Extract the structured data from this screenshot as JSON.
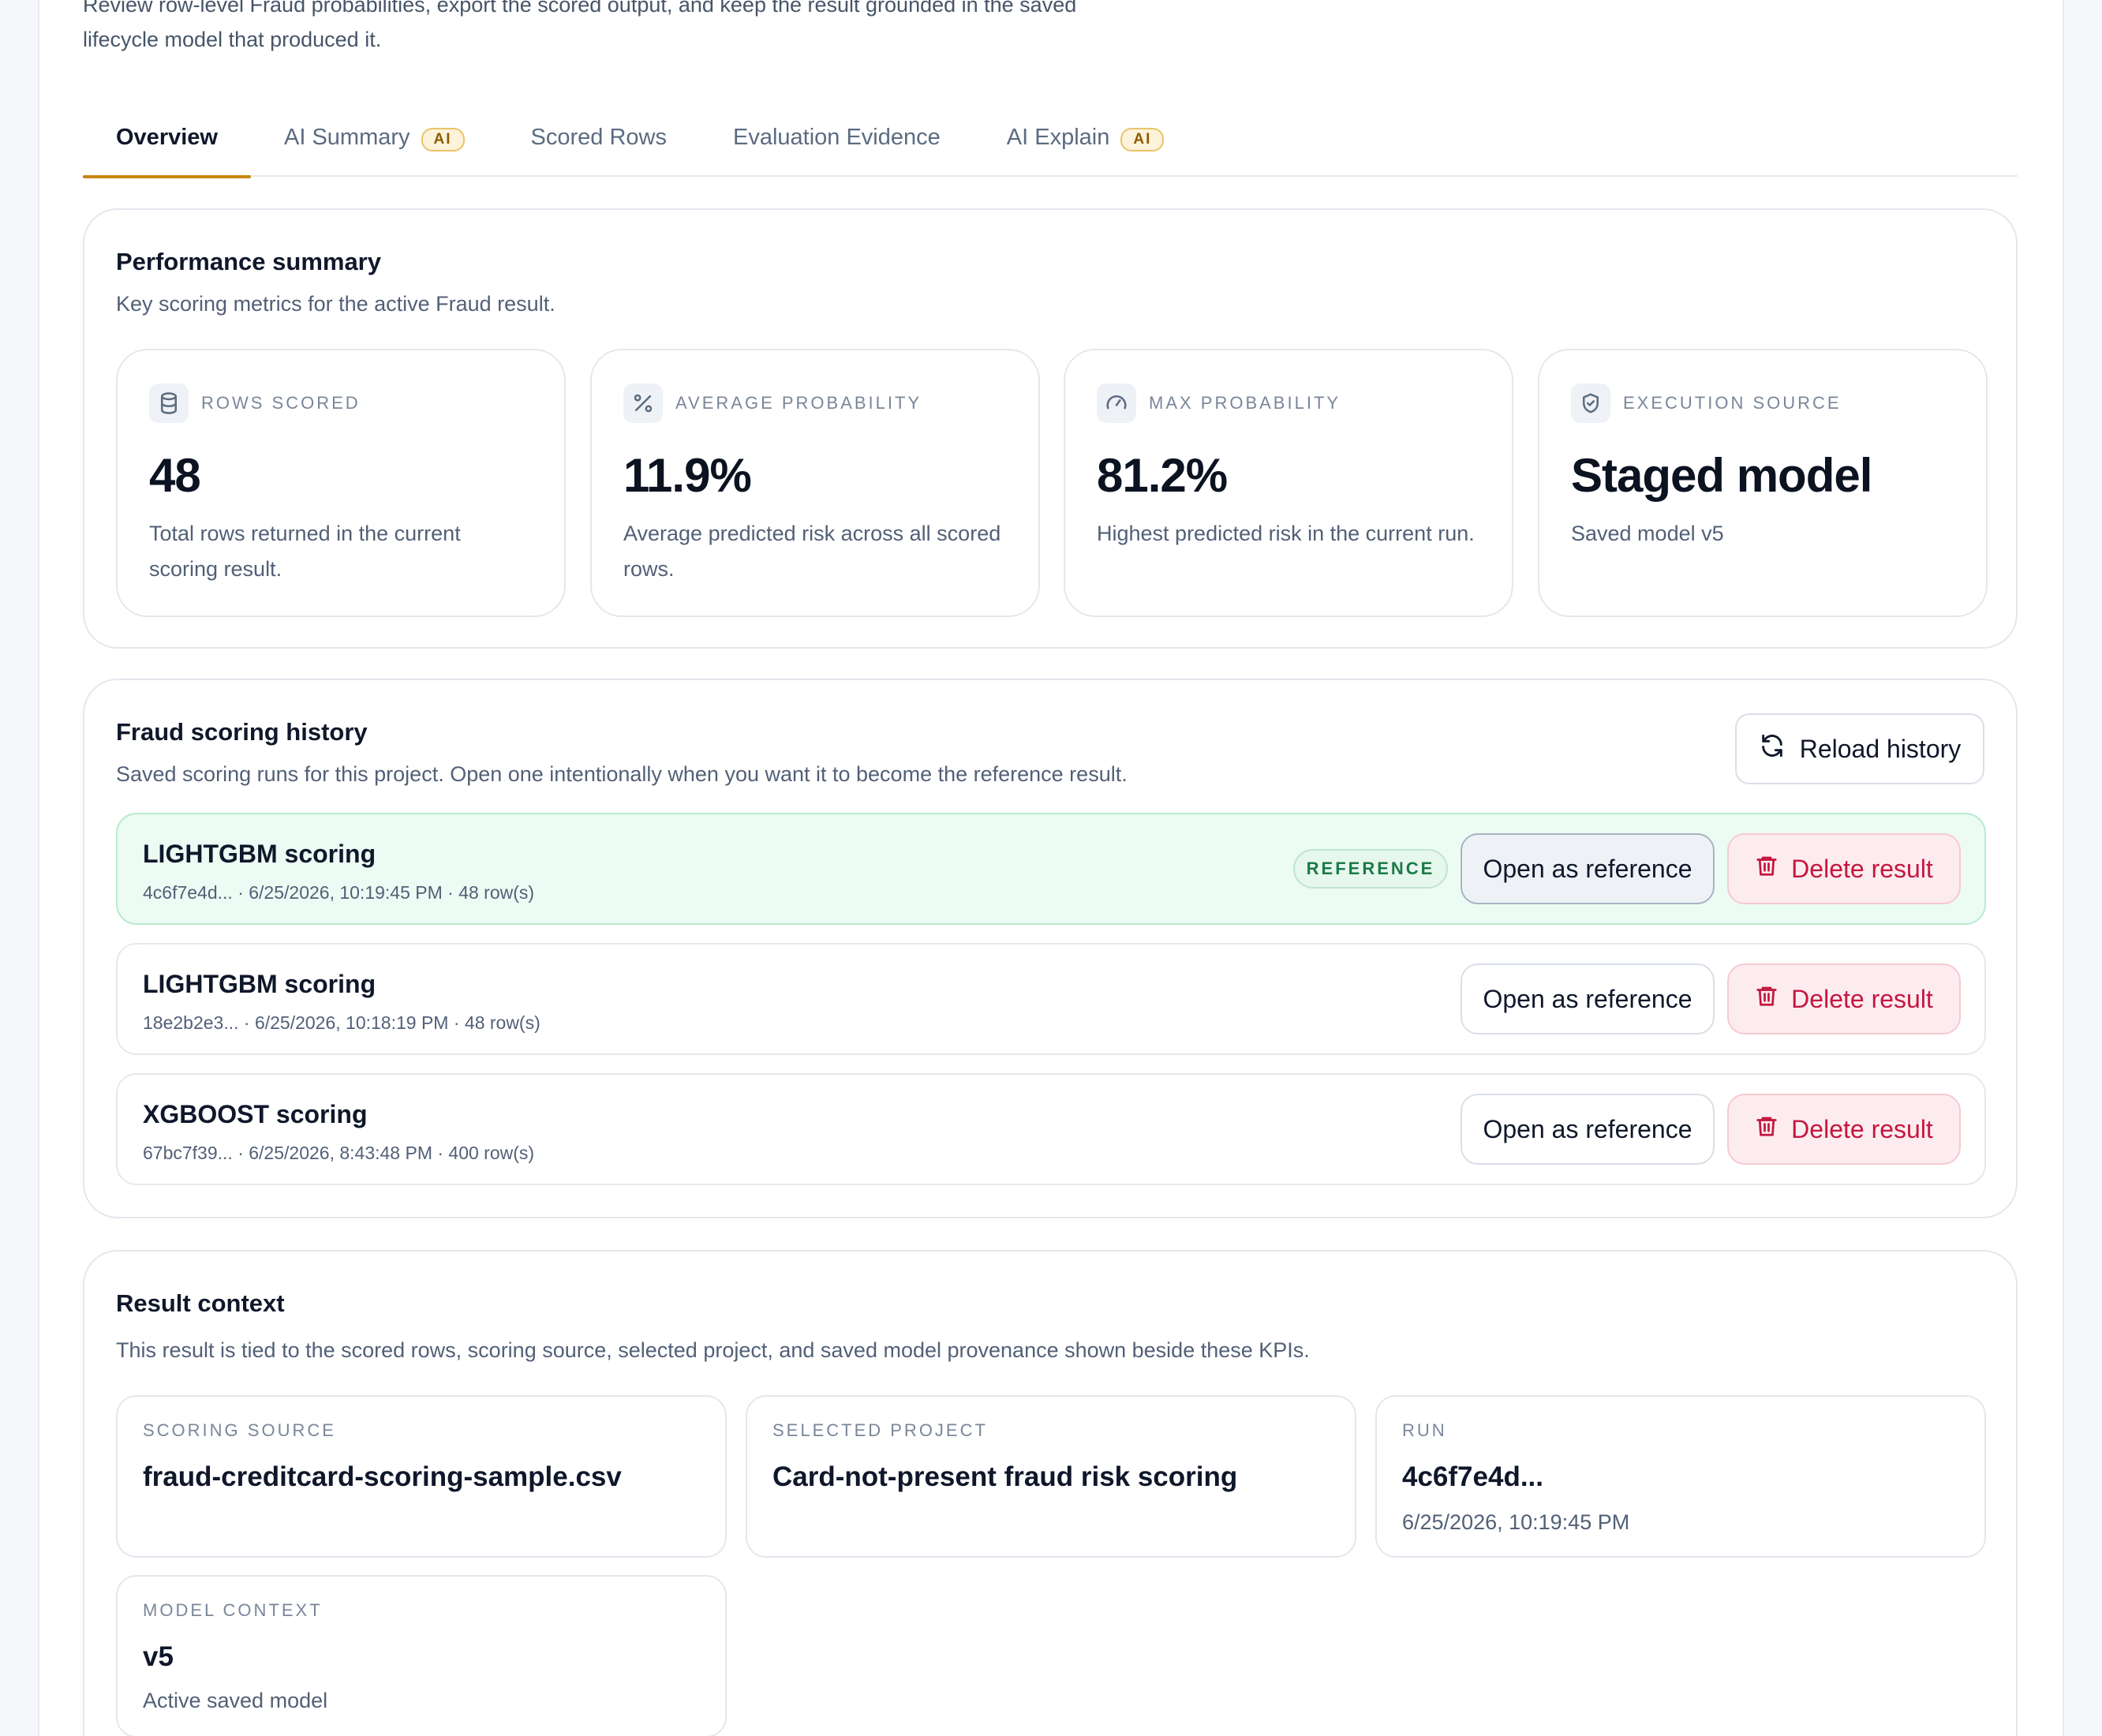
{
  "intro": {
    "line1": "Review row-level Fraud probabilities, export the scored output, and keep the result grounded in the saved",
    "line2": "lifecycle model that produced it."
  },
  "tabs": [
    {
      "label": "Overview",
      "active": true,
      "badge": null
    },
    {
      "label": "AI Summary",
      "active": false,
      "badge": "AI"
    },
    {
      "label": "Scored Rows",
      "active": false,
      "badge": null
    },
    {
      "label": "Evaluation Evidence",
      "active": false,
      "badge": null
    },
    {
      "label": "AI Explain",
      "active": false,
      "badge": "AI"
    }
  ],
  "performance": {
    "title": "Performance summary",
    "subtitle": "Key scoring metrics for the active Fraud result.",
    "kpis": [
      {
        "icon": "database-icon",
        "label": "ROWS SCORED",
        "value": "48",
        "desc": "Total rows returned in the current scoring result."
      },
      {
        "icon": "percent-icon",
        "label": "AVERAGE PROBABILITY",
        "value": "11.9%",
        "desc": "Average predicted risk across all scored rows."
      },
      {
        "icon": "gauge-icon",
        "label": "MAX PROBABILITY",
        "value": "81.2%",
        "desc": "Highest predicted risk in the current run."
      },
      {
        "icon": "shield-check-icon",
        "label": "EXECUTION SOURCE",
        "value": "Staged model",
        "desc": "Saved model v5"
      }
    ]
  },
  "history": {
    "title": "Fraud scoring history",
    "subtitle": "Saved scoring runs for this project. Open one intentionally when you want it to become the reference result.",
    "reload_label": "Reload history",
    "open_label": "Open as reference",
    "delete_label": "Delete result",
    "reference_badge": "REFERENCE",
    "rows": [
      {
        "name": "LIGHTGBM scoring",
        "meta": "4c6f7e4d... · 6/25/2026, 10:19:45 PM · 48 row(s)",
        "reference": true
      },
      {
        "name": "LIGHTGBM scoring",
        "meta": "18e2b2e3... · 6/25/2026, 10:18:19 PM · 48 row(s)",
        "reference": false
      },
      {
        "name": "XGBOOST scoring",
        "meta": "67bc7f39... · 6/25/2026, 8:43:48 PM · 400 row(s)",
        "reference": false
      }
    ]
  },
  "context": {
    "title": "Result context",
    "subtitle": "This result is tied to the scored rows, scoring source, selected project, and saved model provenance shown beside these KPIs.",
    "scoring_source": {
      "label": "SCORING SOURCE",
      "value": "fraud-creditcard-scoring-sample.csv"
    },
    "selected_project": {
      "label": "SELECTED PROJECT",
      "value": "Card-not-present fraud risk scoring"
    },
    "run": {
      "label": "RUN",
      "value": "4c6f7e4d...",
      "note": "6/25/2026, 10:19:45 PM"
    },
    "model_context": {
      "label": "MODEL CONTEXT",
      "value": "v5",
      "note": "Active saved model"
    }
  },
  "colors": {
    "accent": "#c8860d",
    "reference_bg": "#ecfbf3",
    "danger": "#c4173f"
  }
}
